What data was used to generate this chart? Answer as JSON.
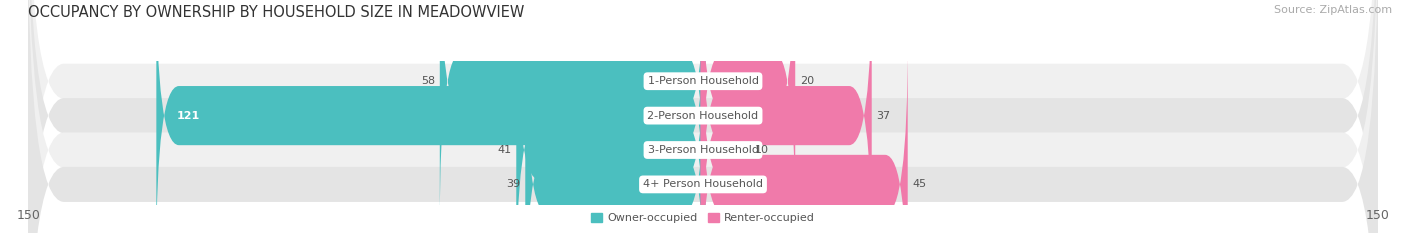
{
  "title": "OCCUPANCY BY OWNERSHIP BY HOUSEHOLD SIZE IN MEADOWVIEW",
  "source": "Source: ZipAtlas.com",
  "categories": [
    "1-Person Household",
    "2-Person Household",
    "3-Person Household",
    "4+ Person Household"
  ],
  "owner_values": [
    58,
    121,
    41,
    39
  ],
  "renter_values": [
    20,
    37,
    10,
    45
  ],
  "owner_color": "#4bbfbf",
  "renter_color": "#f07aaa",
  "owner_color_dark": "#2a9d9d",
  "renter_color_dark": "#e0507a",
  "row_bg_colors": [
    "#f0f0f0",
    "#e4e4e4",
    "#f0f0f0",
    "#e4e4e4"
  ],
  "xlim": 150,
  "legend_items": [
    "Owner-occupied",
    "Renter-occupied"
  ],
  "title_fontsize": 10.5,
  "source_fontsize": 8,
  "tick_fontsize": 9,
  "label_fontsize": 8,
  "value_fontsize": 8,
  "background_color": "#ffffff"
}
